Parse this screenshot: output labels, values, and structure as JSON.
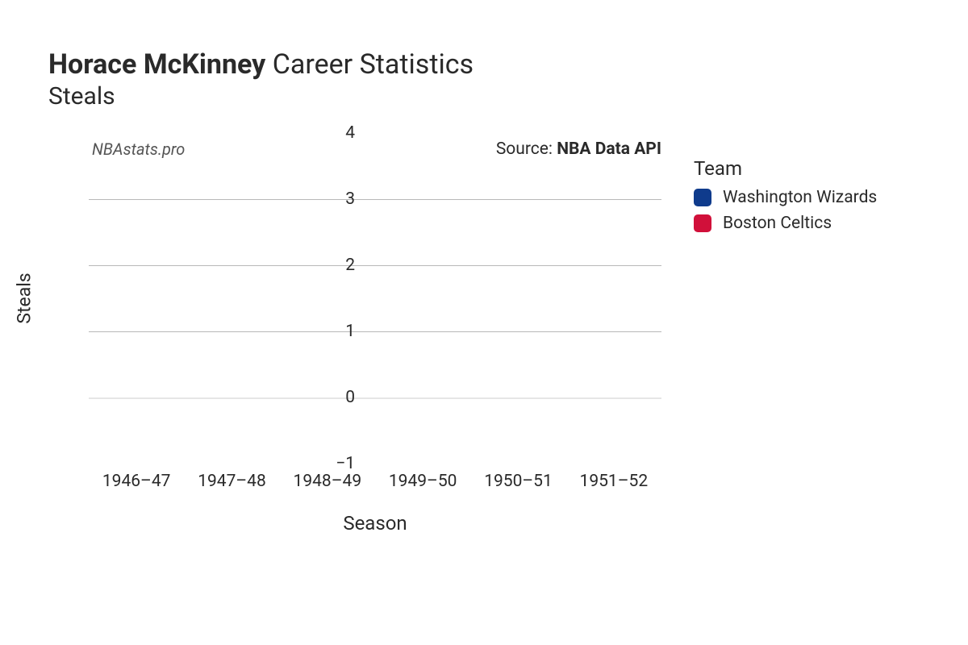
{
  "title": {
    "player": "Horace McKinney",
    "rest": "Career Statistics",
    "stat": "Steals"
  },
  "watermark": "NBAstats.pro",
  "source": {
    "prefix": "Source: ",
    "name": "NBA Data API"
  },
  "chart": {
    "type": "bar",
    "xlabel": "Season",
    "ylabel": "Steals",
    "ylim": [
      -1,
      4
    ],
    "yticks": [
      -1,
      0,
      1,
      2,
      3,
      4
    ],
    "ytick_labels": [
      "−1",
      "0",
      "1",
      "2",
      "3",
      "4"
    ],
    "categories": [
      "1946–47",
      "1947–48",
      "1948–49",
      "1949–50",
      "1950–51",
      "1951–52"
    ],
    "values": [
      0,
      0,
      0,
      0,
      0,
      0
    ],
    "grid_color": "#b8b8b8",
    "zero_line_color": "#e6e6e6",
    "text_color": "#2a2a2a",
    "background_color": "#ffffff",
    "tick_fontsize": 21,
    "label_fontsize": 24
  },
  "legend": {
    "title": "Team",
    "items": [
      {
        "label": "Washington Wizards",
        "color": "#0f3b8c"
      },
      {
        "label": "Boston Celtics",
        "color": "#d1103a"
      }
    ]
  }
}
